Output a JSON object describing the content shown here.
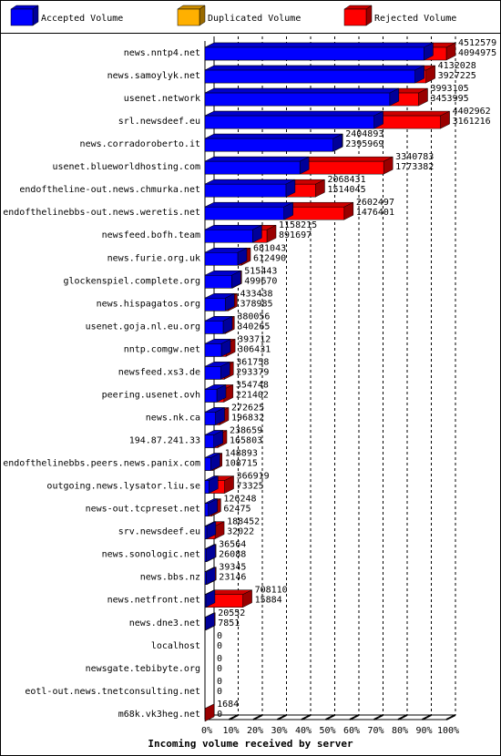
{
  "chart_data": {
    "type": "bar3d",
    "legend": [
      {
        "name": "Accepted Volume",
        "color": "#0000ff"
      },
      {
        "name": "Duplicated Volume",
        "color": "#ffb000"
      },
      {
        "name": "Rejected Volume",
        "color": "#ff0000"
      }
    ],
    "x_label": "Incoming volume received by server",
    "categories": [
      "news.nntp4.net",
      "news.samoylyk.net",
      "usenet.network",
      "srl.newsdeef.eu",
      "news.corradoroberto.it",
      "usenet.blueworldhosting.com",
      "endoftheline-out.news.chmurka.net",
      "endofthelinebbs-out.news.weretis.net",
      "newsfeed.bofh.team",
      "news.furie.org.uk",
      "glockenspiel.complete.org",
      "news.hispagatos.org",
      "usenet.goja.nl.eu.org",
      "nntp.comgw.net",
      "newsfeed.xs3.de",
      "peering.usenet.ovh",
      "news.nk.ca",
      "194.87.241.33",
      "endofthelinebbs.peers.news.panix.com",
      "outgoing.news.lysator.liu.se",
      "news-out.tcpreset.net",
      "srv.newsdeef.eu",
      "news.sonologic.net",
      "news.bbs.nz",
      "news.netfront.net",
      "news.dne3.net",
      "localhost",
      "newsgate.tebibyte.org",
      "eotl-out.news.tnetconsulting.net",
      "m68k.vk3heg.net"
    ],
    "series": [
      {
        "color": "#ff0000",
        "values": [
          4512579,
          4132028,
          3993105,
          4402962,
          2404893,
          3340783,
          2068431,
          2602497,
          1158215,
          681043,
          515443,
          433438,
          380056,
          393712,
          361758,
          354748,
          272625,
          238659,
          148893,
          366919,
          126248,
          188452,
          36564,
          39345,
          708110,
          20552,
          0,
          0,
          0,
          1684
        ]
      },
      {
        "color": "#0000ff",
        "values": [
          4094975,
          3927225,
          3453995,
          3161216,
          2395969,
          1773382,
          1514045,
          1476401,
          891697,
          612490,
          499670,
          378985,
          340265,
          306431,
          293379,
          221402,
          196832,
          165803,
          108715,
          73325,
          62475,
          32022,
          26088,
          23146,
          15884,
          7851,
          0,
          0,
          0,
          0
        ]
      }
    ],
    "xlim": [
      0,
      4512579
    ],
    "xticks": [
      {
        "value": 0,
        "label": "0%"
      },
      {
        "value": 451257.9,
        "label": "10%"
      },
      {
        "value": 902515.8,
        "label": "20%"
      },
      {
        "value": 1353773.7,
        "label": "30%"
      },
      {
        "value": 1805031.6,
        "label": "40%"
      },
      {
        "value": 2256289.5,
        "label": "50%"
      },
      {
        "value": 2707547.4,
        "label": "60%"
      },
      {
        "value": 3158805.3,
        "label": "70%"
      },
      {
        "value": 3610063.2,
        "label": "80%"
      },
      {
        "value": 4061321.1,
        "label": "90%"
      },
      {
        "value": 4512579,
        "label": "100%"
      }
    ],
    "grid": true
  }
}
